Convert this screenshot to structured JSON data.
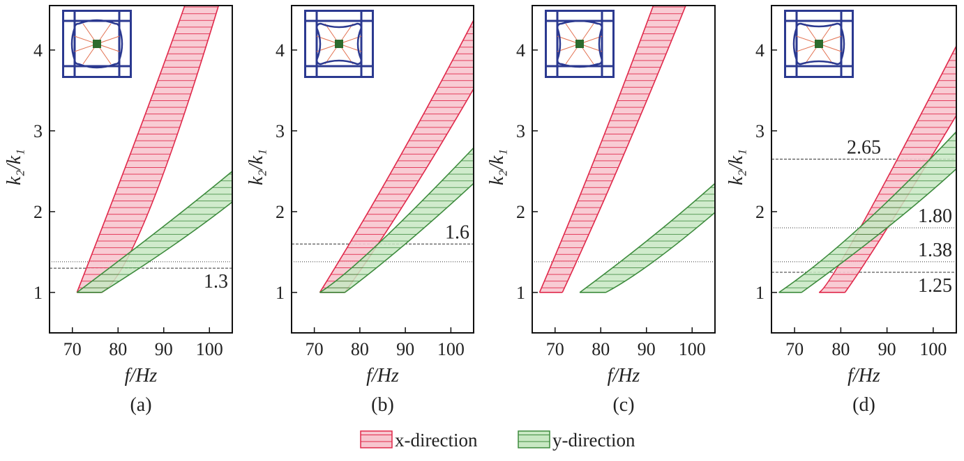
{
  "chart_data": [
    {
      "type": "area",
      "caption": "(a)",
      "xlabel": "f/Hz",
      "ylabel": "k₂/k₁",
      "xlim": [
        65,
        105
      ],
      "ylim": [
        0.5,
        4.55
      ],
      "xticks": [
        70,
        80,
        90,
        100
      ],
      "yticks": [
        1,
        2,
        3,
        4
      ],
      "inset": "convex",
      "series": [
        {
          "name": "x-direction",
          "lower_f_edge": [
            [
              71,
              1
            ],
            [
              84.6,
              3
            ],
            [
              94.6,
              4.55
            ]
          ],
          "upper_f_edge": [
            [
              76.4,
              1
            ],
            [
              86.7,
              2
            ],
            [
              102,
              4.55
            ]
          ]
        },
        {
          "name": "y-direction",
          "lower_f_edge": [
            [
              71,
              1
            ],
            [
              90,
              1.82
            ],
            [
              105,
              2.5
            ]
          ],
          "upper_f_edge": [
            [
              76.4,
              1
            ],
            [
              92,
              1.58
            ],
            [
              105,
              2.12
            ]
          ]
        }
      ],
      "hlines": [
        {
          "y": 1.38,
          "style": "dotted",
          "label": ""
        },
        {
          "y": 1.3,
          "style": "dashed",
          "label": "1.3",
          "label_pos": "below-right"
        }
      ]
    },
    {
      "type": "area",
      "caption": "(b)",
      "xlabel": "f/Hz",
      "ylabel": "k₂/k₁",
      "xlim": [
        65,
        105
      ],
      "ylim": [
        0.5,
        4.55
      ],
      "xticks": [
        70,
        80,
        90,
        100
      ],
      "yticks": [
        1,
        2,
        3,
        4
      ],
      "inset": "concave",
      "series": [
        {
          "name": "x-direction",
          "lower_f_edge": [
            [
              71.2,
              1
            ],
            [
              88,
              2.6
            ],
            [
              105,
              4.37
            ]
          ],
          "upper_f_edge": [
            [
              76.7,
              1
            ],
            [
              90,
              2.12
            ],
            [
              105,
              3.52
            ]
          ]
        },
        {
          "name": "y-direction",
          "lower_f_edge": [
            [
              71.2,
              1
            ],
            [
              84,
              1.6
            ],
            [
              105,
              2.79
            ]
          ],
          "upper_f_edge": [
            [
              76.7,
              1
            ],
            [
              90,
              1.6
            ],
            [
              105,
              2.35
            ]
          ]
        }
      ],
      "hlines": [
        {
          "y": 1.38,
          "style": "dotted",
          "label": ""
        },
        {
          "y": 1.6,
          "style": "dashed",
          "label": "1.6",
          "label_pos": "above-right"
        }
      ]
    },
    {
      "type": "area",
      "caption": "(c)",
      "xlabel": "f/Hz",
      "ylabel": "k₂/k₁",
      "xlim": [
        65,
        105
      ],
      "ylim": [
        0.5,
        4.55
      ],
      "xticks": [
        70,
        80,
        90,
        100
      ],
      "yticks": [
        1,
        2,
        3,
        4
      ],
      "inset": "mixed-vertical",
      "series": [
        {
          "name": "x-direction",
          "lower_f_edge": [
            [
              66.6,
              1
            ],
            [
              79,
              2.7
            ],
            [
              91.5,
              4.55
            ]
          ],
          "upper_f_edge": [
            [
              71.6,
              1
            ],
            [
              85,
              2.7
            ],
            [
              98.6,
              4.55
            ]
          ]
        },
        {
          "name": "y-direction",
          "lower_f_edge": [
            [
              75.4,
              1
            ],
            [
              91,
              1.68
            ],
            [
              105,
              2.35
            ]
          ],
          "upper_f_edge": [
            [
              81.1,
              1
            ],
            [
              91.5,
              1.38
            ],
            [
              105,
              1.99
            ]
          ]
        }
      ],
      "hlines": [
        {
          "y": 1.38,
          "style": "dotted",
          "label": ""
        }
      ]
    },
    {
      "type": "area",
      "caption": "(d)",
      "xlabel": "f/Hz",
      "ylabel": "k₂/k₁",
      "xlim": [
        65,
        105
      ],
      "ylim": [
        0.5,
        4.55
      ],
      "xticks": [
        70,
        80,
        90,
        100
      ],
      "yticks": [
        1,
        2,
        3,
        4
      ],
      "inset": "mixed-horizontal",
      "series": [
        {
          "name": "x-direction",
          "lower_f_edge": [
            [
              75.3,
              1
            ],
            [
              84.2,
              1.8
            ],
            [
              105,
              4.05
            ]
          ],
          "upper_f_edge": [
            [
              80.9,
              1
            ],
            [
              90.1,
              1.8
            ],
            [
              105,
              3.19
            ]
          ]
        },
        {
          "name": "y-direction",
          "lower_f_edge": [
            [
              66.6,
              1
            ],
            [
              84,
              1.8
            ],
            [
              105,
              2.99
            ]
          ],
          "upper_f_edge": [
            [
              71.5,
              1
            ],
            [
              90,
              1.8
            ],
            [
              105,
              2.53
            ]
          ]
        }
      ],
      "hlines": [
        {
          "y": 2.65,
          "style": "dashed",
          "label": "2.65",
          "label_pos": "above-center"
        },
        {
          "y": 1.8,
          "style": "dotted",
          "label": "1.80",
          "label_pos": "above-right"
        },
        {
          "y": 1.38,
          "style": "dotted",
          "label": "1.38",
          "label_pos": "above-right"
        },
        {
          "y": 1.25,
          "style": "dashed",
          "label": "1.25",
          "label_pos": "below-right"
        }
      ]
    }
  ],
  "legend": {
    "placement": "bottom-center",
    "items": [
      {
        "label": "x-direction",
        "stroke": "#e0284a",
        "fill": "#f7c6cf"
      },
      {
        "label": "y-direction",
        "stroke": "#3d8b3d",
        "fill": "#c8e8c3"
      }
    ]
  },
  "colors": {
    "frame": "#2b3990",
    "spoke": "#e2704f",
    "center": "#2e6b2e"
  }
}
